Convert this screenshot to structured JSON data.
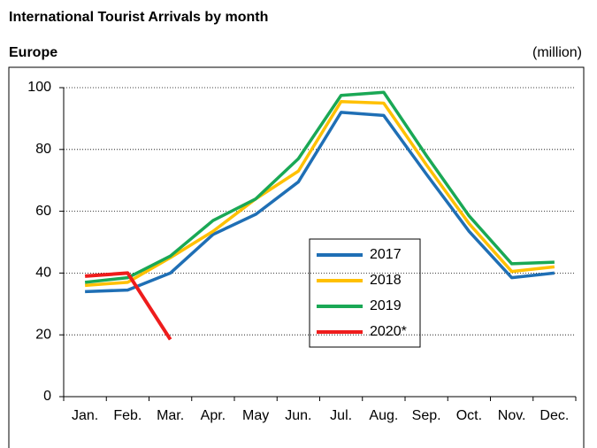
{
  "chart_data": {
    "type": "line",
    "title": "International Tourist Arrivals by month",
    "subtitle": "Europe",
    "unit_label": "(million)",
    "categories": [
      "Jan.",
      "Feb.",
      "Mar.",
      "Apr.",
      "May",
      "Jun.",
      "Jul.",
      "Aug.",
      "Sep.",
      "Oct.",
      "Nov.",
      "Dec."
    ],
    "series": [
      {
        "name": "2017",
        "color": "#1f6fb5",
        "values": [
          34,
          34.5,
          40,
          52.5,
          59,
          69.5,
          92,
          91,
          72,
          53.5,
          38.5,
          40
        ]
      },
      {
        "name": "2018",
        "color": "#ffc000",
        "values": [
          36,
          37,
          45,
          53.5,
          64,
          73,
          95.5,
          95,
          75,
          56,
          40.5,
          42
        ]
      },
      {
        "name": "2019",
        "color": "#1aa855",
        "values": [
          37,
          38.5,
          45.5,
          57,
          64,
          77,
          97.5,
          98.5,
          78,
          58.5,
          43,
          43.5
        ]
      },
      {
        "name": "2020*",
        "color": "#ee1c1c",
        "values": [
          39,
          40,
          18.5,
          null,
          null,
          null,
          null,
          null,
          null,
          null,
          null,
          null
        ]
      }
    ],
    "ylim": [
      0,
      100
    ],
    "yticks": [
      0,
      20,
      40,
      60,
      80,
      100
    ],
    "grid": true
  }
}
